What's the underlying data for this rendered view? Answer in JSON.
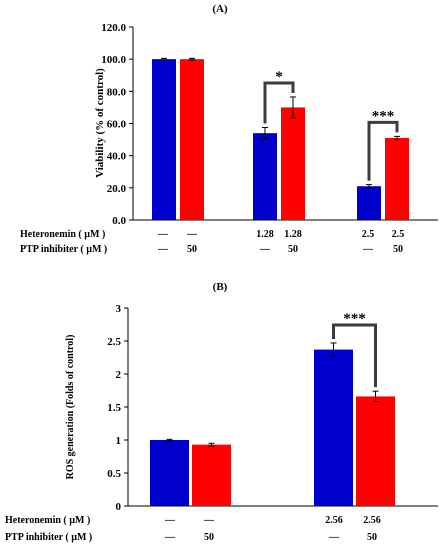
{
  "chart_data": [
    {
      "type": "bar",
      "panel_label": "(A)",
      "ylabel": "Viability (% of control)",
      "ylim": [
        0,
        120
      ],
      "yticks": [
        "0.0",
        "20.0",
        "40.0",
        "60.0",
        "80.0",
        "100.0",
        "120.0"
      ],
      "series_colors": [
        "#0000cc",
        "#ff0000"
      ],
      "groups": [
        {
          "bars": [
            {
              "value": 100,
              "err": 0.5
            },
            {
              "value": 100,
              "err": 0.5
            }
          ],
          "significance": ""
        },
        {
          "bars": [
            {
              "value": 54,
              "err": 3.5
            },
            {
              "value": 70,
              "err": 6.5
            }
          ],
          "significance": "*"
        },
        {
          "bars": [
            {
              "value": 21,
              "err": 1
            },
            {
              "value": 51,
              "err": 1
            }
          ],
          "significance": "***"
        }
      ],
      "treatment_rows": [
        {
          "label": "Heteronemin ( µM )",
          "values": [
            "—",
            "—",
            "1.28",
            "1.28",
            "2.5",
            "2.5"
          ]
        },
        {
          "label": "PTP inhibiter ( µM )",
          "values": [
            "—",
            "50",
            "—",
            "50",
            "—",
            "50"
          ]
        }
      ]
    },
    {
      "type": "bar",
      "panel_label": "(B)",
      "ylabel": "ROS generation (Folds of control)",
      "ylim": [
        0,
        3
      ],
      "yticks": [
        "0",
        "0.5",
        "1",
        "1.5",
        "2",
        "2.5",
        "3"
      ],
      "series_colors": [
        "#0000cc",
        "#ff0000"
      ],
      "groups": [
        {
          "bars": [
            {
              "value": 1.0,
              "err": 0.01
            },
            {
              "value": 0.93,
              "err": 0.02
            }
          ],
          "significance": ""
        },
        {
          "bars": [
            {
              "value": 2.37,
              "err": 0.1
            },
            {
              "value": 1.66,
              "err": 0.08
            }
          ],
          "significance": "***"
        }
      ],
      "treatment_rows": [
        {
          "label": "Heteronemin ( µM )",
          "values": [
            "—",
            "—",
            "2.56",
            "2.56"
          ]
        },
        {
          "label": "PTP inhibiter ( µM )",
          "values": [
            "—",
            "50",
            "—",
            "50"
          ]
        }
      ]
    }
  ]
}
